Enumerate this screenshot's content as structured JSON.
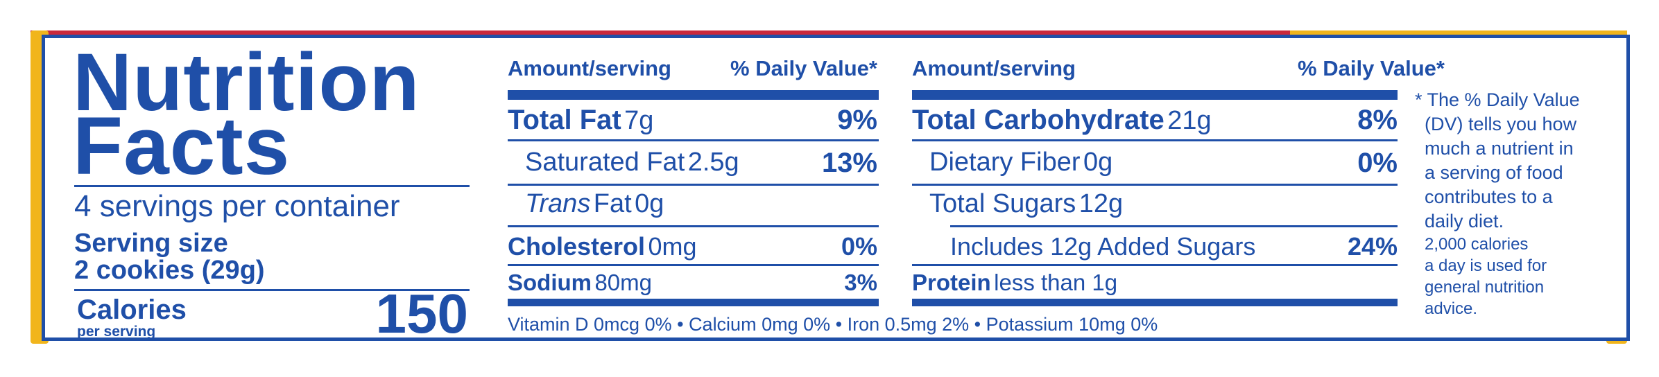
{
  "title_line1": "Nutrition",
  "title_line2": "Facts",
  "servings_per_container": "4 servings per container",
  "serving_size_label": "Serving size",
  "serving_size_value": "2 cookies (29g)",
  "calories_label": "Calories",
  "calories_sublabel": "per serving",
  "calories_value": "150",
  "left_table": {
    "header_amount": "Amount/serving",
    "header_dv": "% Daily Value*",
    "rows": [
      {
        "name": "Total Fat",
        "amount": "7g",
        "dv": "9%"
      },
      {
        "name": "Saturated Fat",
        "amount": "2.5g",
        "dv": "13%"
      },
      {
        "name_italic": "Trans",
        "name": "Fat",
        "amount": "0g",
        "dv": ""
      },
      {
        "name": "Cholesterol",
        "amount": "0mg",
        "dv": "0%"
      },
      {
        "name": "Sodium",
        "amount": "80mg",
        "dv": "3%"
      }
    ]
  },
  "right_table": {
    "header_amount": "Amount/serving",
    "header_dv": "% Daily Value*",
    "rows": [
      {
        "name": "Total Carbohydrate",
        "amount": "21g",
        "dv": "8%"
      },
      {
        "name": "Dietary Fiber",
        "amount": "0g",
        "dv": "0%"
      },
      {
        "name": "Total Sugars",
        "amount": "12g",
        "dv": ""
      },
      {
        "name": "Includes 12g Added Sugars",
        "amount": "",
        "dv": "24%"
      },
      {
        "name": "Protein",
        "amount": "less than 1g",
        "dv": ""
      }
    ]
  },
  "micronutrients": "Vitamin D 0mcg 0% • Calcium 0mg 0% • Iron 0.5mg 2% • Potassium 10mg 0%",
  "footnote_lines": [
    "* The % Daily Value",
    "(DV) tells you how",
    "much a nutrient in",
    "a serving of food",
    "contributes to a",
    "daily diet."
  ],
  "footnote_lines_small": [
    "2,000 calories",
    "a day is used for",
    "general nutrition",
    "advice."
  ],
  "colors": {
    "ink": "#1f4fa8",
    "gold": "#f1b51c",
    "red": "#c8283c"
  }
}
